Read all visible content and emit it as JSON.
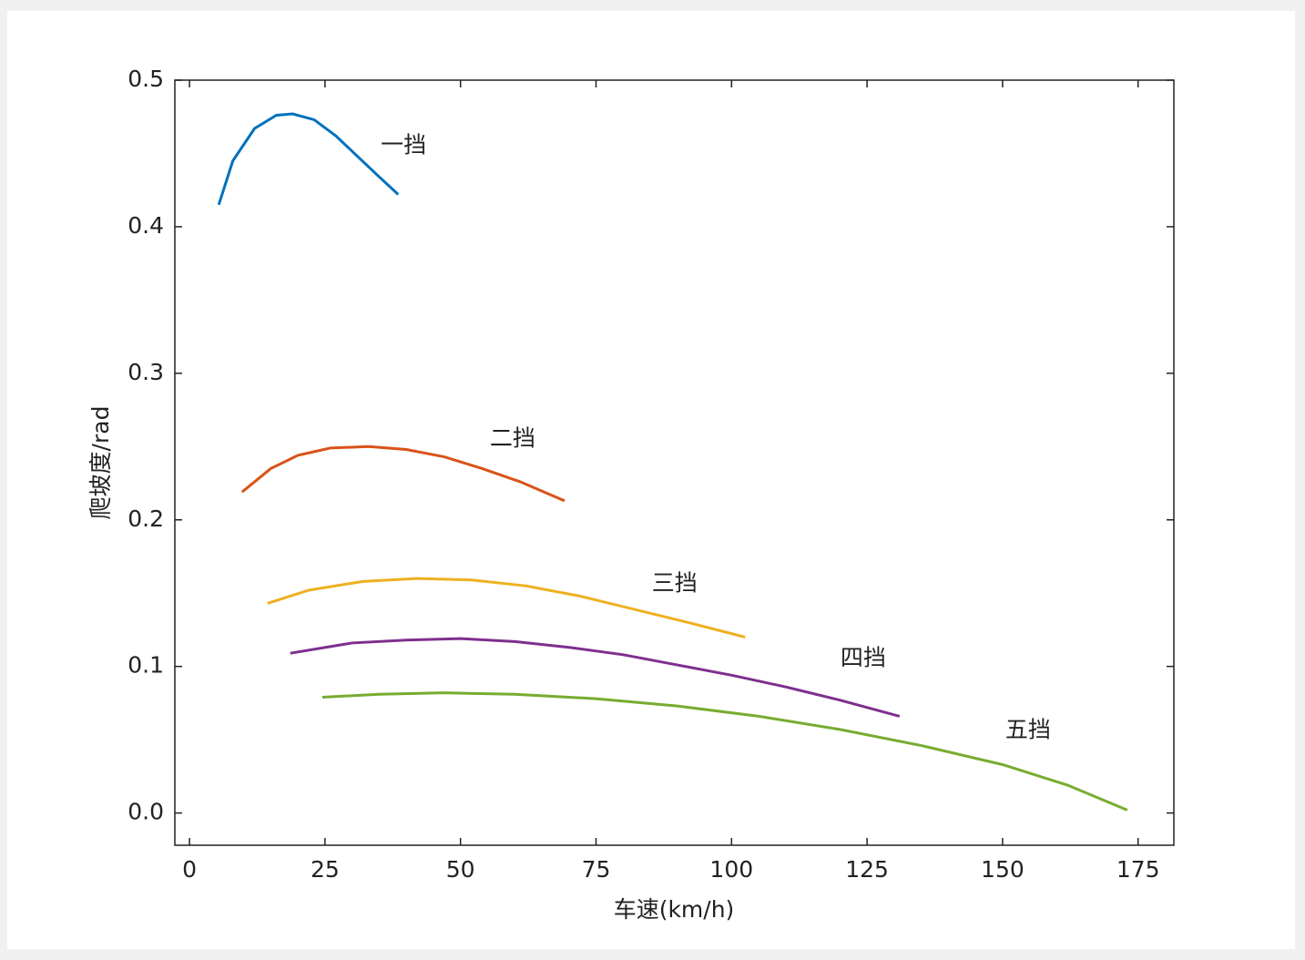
{
  "chart_data": {
    "type": "line",
    "xlabel": "车速(km/h)",
    "ylabel": "爬坡度/rad",
    "xlim": [
      -2.7,
      181.6
    ],
    "ylim": [
      -0.022,
      0.5
    ],
    "xticks": [
      0,
      25,
      50,
      75,
      100,
      125,
      150,
      175
    ],
    "yticks": [
      {
        "value": 0,
        "label": "0.0"
      },
      0.1,
      0.2,
      0.3,
      0.4,
      0.5
    ],
    "grid": false,
    "series": [
      {
        "name": "一挡",
        "color": "#0072BD",
        "label_at": [
          39.5,
          0.455
        ],
        "x": [
          5.4,
          8,
          12,
          16,
          19,
          23,
          27,
          31,
          35,
          38.5
        ],
        "values": [
          0.415,
          0.445,
          0.467,
          0.476,
          0.477,
          0.473,
          0.462,
          0.448,
          0.434,
          0.422
        ]
      },
      {
        "name": "二挡",
        "color": "#D95319",
        "label_at": [
          59.6,
          0.255
        ],
        "x": [
          9.7,
          15,
          20,
          26,
          33,
          40,
          47,
          54,
          61,
          69.2
        ],
        "values": [
          0.219,
          0.235,
          0.244,
          0.249,
          0.25,
          0.248,
          0.243,
          0.235,
          0.226,
          0.213
        ]
      },
      {
        "name": "三挡",
        "color": "#EDB120",
        "label_at": [
          89.5,
          0.156
        ],
        "x": [
          14.4,
          22,
          32,
          42,
          52,
          62,
          72,
          82,
          92,
          102.5
        ],
        "values": [
          0.143,
          0.152,
          0.158,
          0.16,
          0.159,
          0.155,
          0.148,
          0.139,
          0.13,
          0.12
        ]
      },
      {
        "name": "四挡",
        "color": "#7E2F8E",
        "label_at": [
          124.3,
          0.105
        ],
        "x": [
          18.6,
          30,
          40,
          50,
          60,
          70,
          80,
          90,
          100,
          110,
          120,
          131
        ],
        "values": [
          0.109,
          0.116,
          0.118,
          0.119,
          0.117,
          0.113,
          0.108,
          0.101,
          0.094,
          0.086,
          0.077,
          0.066
        ]
      },
      {
        "name": "五挡",
        "color": "#77AC30",
        "label_at": [
          154.7,
          0.056
        ],
        "x": [
          24.5,
          35,
          47,
          60,
          75,
          90,
          105,
          120,
          135,
          150,
          162,
          173
        ],
        "values": [
          0.079,
          0.081,
          0.082,
          0.081,
          0.078,
          0.073,
          0.066,
          0.057,
          0.046,
          0.033,
          0.019,
          0.002
        ]
      }
    ]
  }
}
